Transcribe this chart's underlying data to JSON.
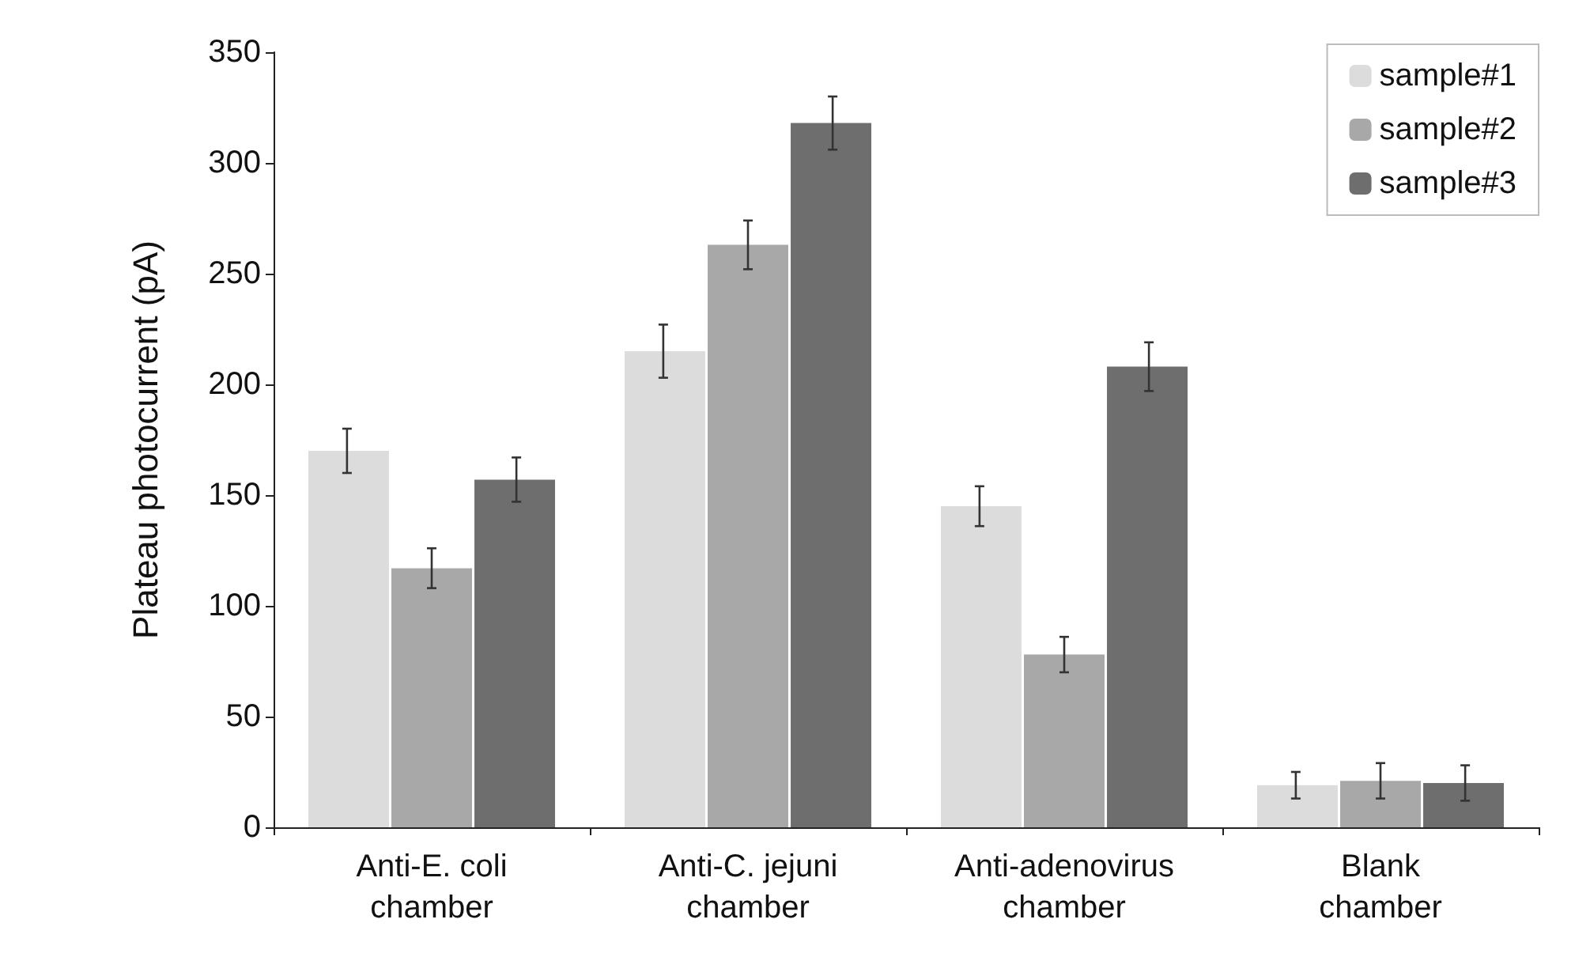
{
  "chart_data": {
    "type": "bar",
    "ylabel": "Plateau photocurrent (pA)",
    "categories": [
      "Anti-E. coli\nchamber",
      "Anti-C. jejuni\nchamber",
      "Anti-adenovirus\nchamber",
      "Blank\nchamber"
    ],
    "series": [
      {
        "name": "sample#1",
        "color": "#dcdcdc",
        "values": [
          170,
          215,
          145,
          19
        ],
        "errors": [
          10,
          12,
          9,
          6
        ]
      },
      {
        "name": "sample#2",
        "color": "#a8a8a8",
        "values": [
          117,
          263,
          78,
          21
        ],
        "errors": [
          9,
          11,
          8,
          8
        ]
      },
      {
        "name": "sample#3",
        "color": "#6e6e6e",
        "values": [
          157,
          318,
          208,
          20
        ],
        "errors": [
          10,
          12,
          11,
          8
        ]
      }
    ],
    "ylim": [
      0,
      350
    ],
    "yticks": [
      0,
      50,
      100,
      150,
      200,
      250,
      300,
      350
    ],
    "grid": false,
    "legend": "top right"
  }
}
